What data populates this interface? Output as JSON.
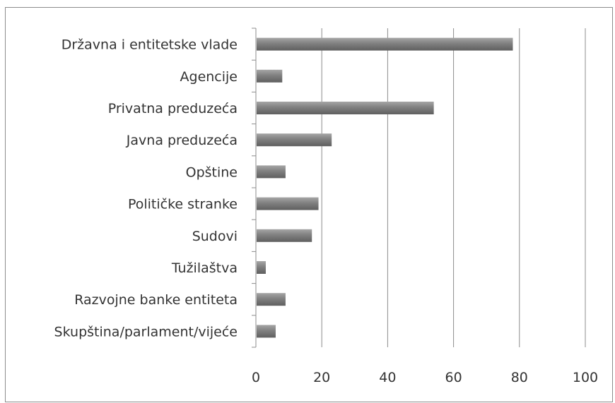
{
  "chart_data": {
    "type": "bar",
    "orientation": "horizontal",
    "categories": [
      "Državna i entitetske vlade",
      "Agencije",
      "Privatna preduzeća",
      "Javna preduzeća",
      "Opštine",
      "Političke stranke",
      "Sudovi",
      "Tužilaštva",
      "Razvojne banke entiteta",
      "Skupština/parlament/vijeće"
    ],
    "values": [
      78,
      8,
      54,
      23,
      9,
      19,
      17,
      3,
      9,
      6
    ],
    "xlim": [
      0,
      100
    ],
    "xticks": [
      0,
      20,
      40,
      60,
      80,
      100
    ],
    "grid": "vertical",
    "legend": "none",
    "bar_color": "#7f7f7f"
  }
}
